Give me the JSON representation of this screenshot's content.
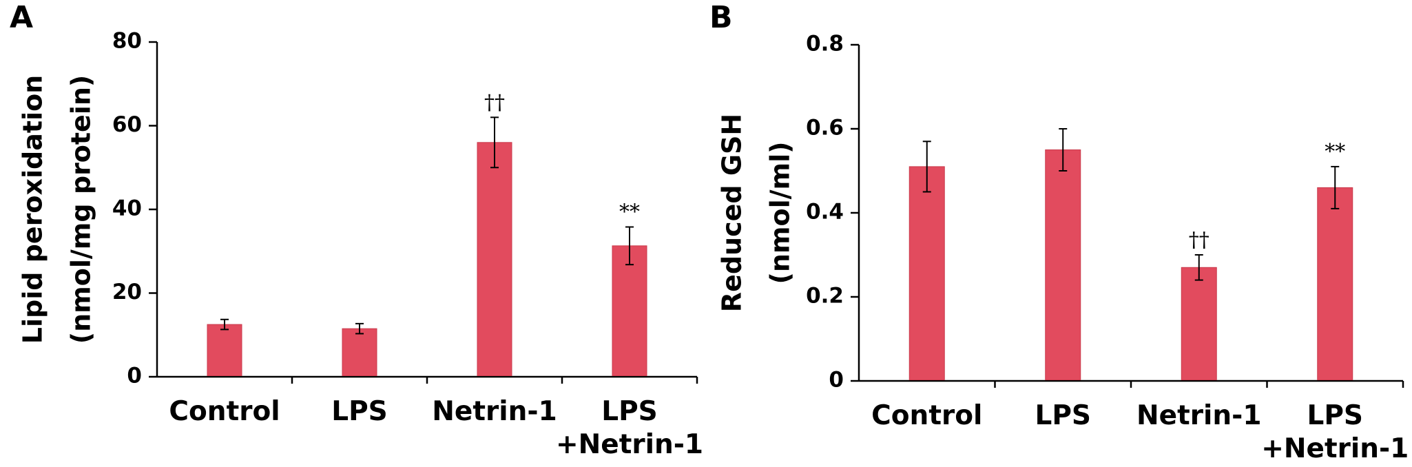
{
  "chart_data": [
    {
      "type": "bar",
      "panel_label": "A",
      "ylabel": [
        "Lipid peroxidation",
        "(nmol/mg protein)"
      ],
      "categories": [
        [
          "Control"
        ],
        [
          "LPS"
        ],
        [
          "Netrin-1"
        ],
        [
          "LPS",
          "+Netrin-1"
        ]
      ],
      "values": [
        12.5,
        11.5,
        56,
        31.3
      ],
      "errors": [
        1.2,
        1.2,
        6,
        4.5
      ],
      "annotations": [
        "",
        "",
        "††",
        "**"
      ],
      "ylim": [
        0,
        80
      ],
      "yticks": [
        0,
        20,
        40,
        60,
        80
      ],
      "ytick_labels": [
        "0",
        "20",
        "40",
        "60",
        "80"
      ],
      "bar_color": "#e24b5e",
      "grid": false
    },
    {
      "type": "bar",
      "panel_label": "B",
      "ylabel": [
        "Reduced GSH",
        "(nmol/ml)"
      ],
      "categories": [
        [
          "Control"
        ],
        [
          "LPS"
        ],
        [
          "Netrin-1"
        ],
        [
          "LPS",
          "+Netrin-1"
        ]
      ],
      "values": [
        0.51,
        0.55,
        0.27,
        0.46
      ],
      "errors": [
        0.06,
        0.05,
        0.03,
        0.05
      ],
      "annotations": [
        "",
        "",
        "††",
        "**"
      ],
      "ylim": [
        0,
        0.8
      ],
      "yticks": [
        0,
        0.2,
        0.4,
        0.6,
        0.8
      ],
      "ytick_labels": [
        "0",
        "0.2",
        "0.4",
        "0.6",
        "0.8"
      ],
      "bar_color": "#e24b5e",
      "grid": false
    }
  ]
}
